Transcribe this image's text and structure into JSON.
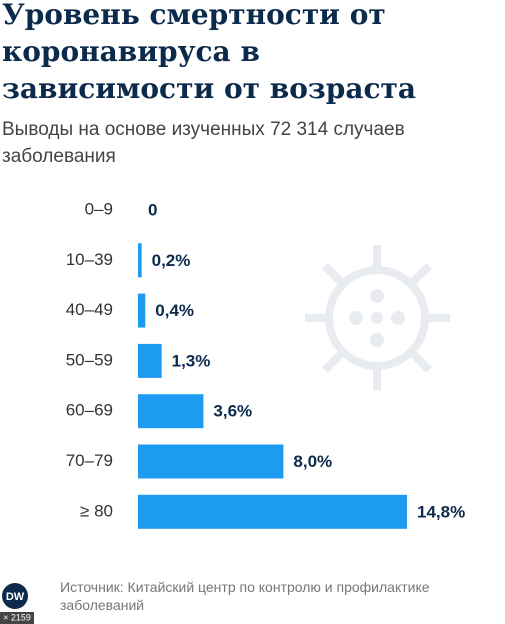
{
  "chart_data": {
    "type": "bar",
    "orientation": "horizontal",
    "title": "Уровень смертности от коронавируса в зависимости от возраста",
    "subtitle": "Выводы на основе изученных 72 314 случаев заболевания",
    "categories": [
      "0–9",
      "10–39",
      "40–49",
      "50–59",
      "60–69",
      "70–79",
      "≥ 80"
    ],
    "values": [
      0,
      0.2,
      0.4,
      1.3,
      3.6,
      8.0,
      14.8
    ],
    "value_labels": [
      "0",
      "0,2%",
      "0,4%",
      "1,3%",
      "3,6%",
      "8,0%",
      "14,8%"
    ],
    "color": "#1d9bf0",
    "source": "Источник: Китайский центр по контролю и профилактике заболеваний",
    "logo": "DW",
    "badge": "× 2159"
  }
}
